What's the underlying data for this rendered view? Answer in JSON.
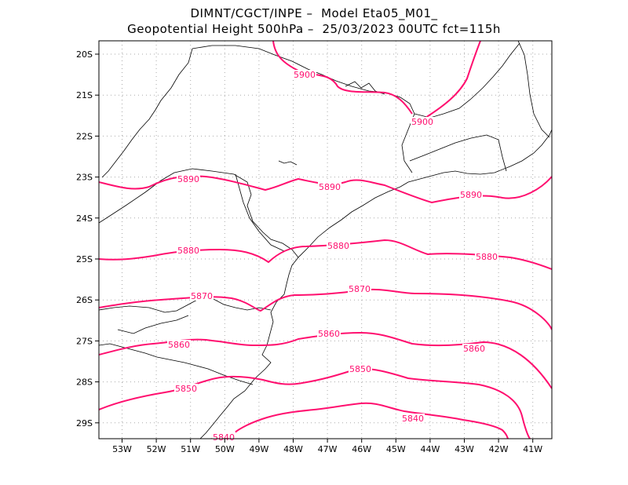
{
  "header": {
    "line1": "DIMNT/CGCT/INPE –  Model Eta05_M01_",
    "line2": "Geopotential Height 500hPa –  25/03/2023 00UTC fct=115h"
  },
  "map": {
    "lon_labels": [
      "53W",
      "52W",
      "51W",
      "50W",
      "49W",
      "48W",
      "47W",
      "46W",
      "45W",
      "44W",
      "43W",
      "42W",
      "41W"
    ],
    "lat_labels": [
      "20S",
      "21S",
      "22S",
      "23S",
      "24S",
      "25S",
      "26S",
      "27S",
      "28S",
      "29S"
    ],
    "contour_color": "#ff0f6f"
  },
  "contours": [
    {
      "level": "5900",
      "labels": [
        "5900",
        "5900"
      ]
    },
    {
      "level": "5890",
      "labels": [
        "5890",
        "5890",
        "5890"
      ]
    },
    {
      "level": "5880",
      "labels": [
        "5880",
        "5880",
        "5880"
      ]
    },
    {
      "level": "5870",
      "labels": [
        "5870",
        "5870"
      ]
    },
    {
      "level": "5860",
      "labels": [
        "5860",
        "5860",
        "5860"
      ]
    },
    {
      "level": "5850",
      "labels": [
        "5850",
        "5850"
      ]
    },
    {
      "level": "5840",
      "labels": [
        "5840",
        "5840"
      ]
    }
  ]
}
